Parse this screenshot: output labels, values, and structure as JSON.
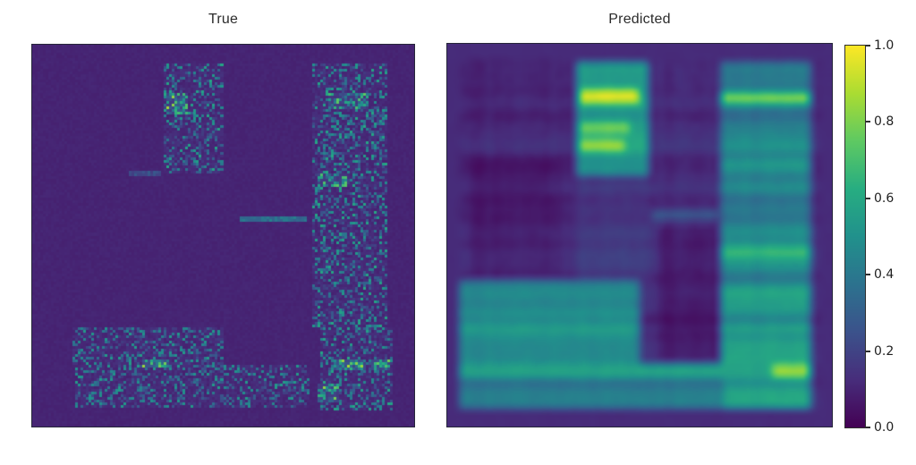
{
  "figure": {
    "background": "#ffffff"
  },
  "titles": {
    "true": "True",
    "predicted": "Predicted"
  },
  "colorbar": {
    "ticks": [
      "1.0",
      "0.8",
      "0.6",
      "0.4",
      "0.2",
      "0.0"
    ],
    "outline_color": "#2f2f2f",
    "label_color": "#1f1f1f"
  },
  "palette": {
    "name": "viridis",
    "stops": [
      "#440154",
      "#472d7b",
      "#3b528b",
      "#2c728e",
      "#21918c",
      "#27ad81",
      "#5ec962",
      "#aadc32",
      "#fde725"
    ]
  },
  "chart_data": [
    {
      "type": "heatmap",
      "title": "True",
      "style": "speckle",
      "colormap": "viridis",
      "value_range": [
        0.0,
        1.0
      ],
      "background_value": 0.1,
      "regions": [
        {
          "x": [
            0.342,
            0.501
          ],
          "y": [
            0.047,
            0.34
          ],
          "density": 0.5,
          "base": 0.1,
          "gain": 0.5
        },
        {
          "x": [
            0.355,
            0.405
          ],
          "y": [
            0.125,
            0.18
          ],
          "density": 0.85,
          "base": 0.18,
          "gain": 0.7
        },
        {
          "x": [
            0.735,
            0.93
          ],
          "y": [
            0.047,
            0.74
          ],
          "density": 0.5,
          "base": 0.1,
          "gain": 0.5
        },
        {
          "x": [
            0.775,
            0.88
          ],
          "y": [
            0.128,
            0.172
          ],
          "density": 0.8,
          "base": 0.16,
          "gain": 0.6
        },
        {
          "x": [
            0.745,
            0.825
          ],
          "y": [
            0.338,
            0.375
          ],
          "density": 0.8,
          "base": 0.16,
          "gain": 0.6
        },
        {
          "x": [
            0.755,
            0.945
          ],
          "y": [
            0.74,
            0.955
          ],
          "density": 0.5,
          "base": 0.1,
          "gain": 0.5
        },
        {
          "x": [
            0.103,
            0.501
          ],
          "y": [
            0.742,
            0.84
          ],
          "density": 0.48,
          "base": 0.1,
          "gain": 0.45
        },
        {
          "x": [
            0.115,
            0.723
          ],
          "y": [
            0.84,
            0.953
          ],
          "density": 0.48,
          "base": 0.1,
          "gain": 0.45
        },
        {
          "x": [
            0.29,
            0.36
          ],
          "y": [
            0.824,
            0.848
          ],
          "density": 0.85,
          "base": 0.22,
          "gain": 0.65
        },
        {
          "x": [
            0.79,
            0.87
          ],
          "y": [
            0.824,
            0.85
          ],
          "density": 0.85,
          "base": 0.22,
          "gain": 0.65
        },
        {
          "x": [
            0.89,
            0.935
          ],
          "y": [
            0.824,
            0.85
          ],
          "density": 0.85,
          "base": 0.22,
          "gain": 0.65
        },
        {
          "x": [
            0.745,
            0.8
          ],
          "y": [
            0.885,
            0.935
          ],
          "density": 0.8,
          "base": 0.18,
          "gain": 0.65
        },
        {
          "x": [
            0.545,
            0.72
          ],
          "y": [
            0.45,
            0.462
          ],
          "density": 0.9,
          "base": 0.32,
          "gain": 0.12
        },
        {
          "x": [
            0.255,
            0.335
          ],
          "y": [
            0.33,
            0.342
          ],
          "density": 0.6,
          "base": 0.2,
          "gain": 0.1
        }
      ]
    },
    {
      "type": "heatmap",
      "title": "Predicted",
      "style": "smooth",
      "colormap": "viridis",
      "value_range": [
        0.0,
        1.0
      ],
      "background_value": 0.12,
      "regions": [
        {
          "x": [
            0.035,
            0.965
          ],
          "y": [
            0.038,
            0.955
          ],
          "base": 0.13,
          "streak": 0.05
        },
        {
          "x": [
            0.04,
            0.335
          ],
          "y": [
            0.04,
            0.62
          ],
          "base": 0.11,
          "streak": 0.05
        },
        {
          "x": [
            0.06,
            0.3
          ],
          "y": [
            0.3,
            0.6
          ],
          "base": 0.075,
          "streak": 0.04
        },
        {
          "x": [
            0.335,
            0.52
          ],
          "y": [
            0.05,
            0.345
          ],
          "base": 0.55,
          "streak": 0.1
        },
        {
          "x": [
            0.34,
            0.5
          ],
          "y": [
            0.115,
            0.16
          ],
          "base": 0.95,
          "streak": 0.04
        },
        {
          "x": [
            0.34,
            0.48
          ],
          "y": [
            0.2,
            0.232
          ],
          "base": 0.78,
          "streak": 0.05
        },
        {
          "x": [
            0.34,
            0.46
          ],
          "y": [
            0.252,
            0.285
          ],
          "base": 0.82,
          "streak": 0.05
        },
        {
          "x": [
            0.335,
            0.52
          ],
          "y": [
            0.345,
            0.62
          ],
          "base": 0.15,
          "streak": 0.05
        },
        {
          "x": [
            0.545,
            0.72
          ],
          "y": [
            0.04,
            0.955
          ],
          "base": 0.12,
          "streak": 0.05
        },
        {
          "x": [
            0.545,
            0.72
          ],
          "y": [
            0.45,
            0.825
          ],
          "base": 0.065,
          "streak": 0.03
        },
        {
          "x": [
            0.53,
            0.7
          ],
          "y": [
            0.44,
            0.452
          ],
          "base": 0.34,
          "streak": 0.02
        },
        {
          "x": [
            0.53,
            0.7
          ],
          "y": [
            0.458,
            0.468
          ],
          "base": 0.3,
          "streak": 0.02
        },
        {
          "x": [
            0.71,
            0.945
          ],
          "y": [
            0.05,
            0.955
          ],
          "base": 0.42,
          "streak": 0.13
        },
        {
          "x": [
            0.71,
            0.945
          ],
          "y": [
            0.125,
            0.16
          ],
          "base": 0.8,
          "streak": 0.06
        },
        {
          "x": [
            0.71,
            0.945
          ],
          "y": [
            0.3,
            0.335
          ],
          "base": 0.55,
          "streak": 0.06
        },
        {
          "x": [
            0.71,
            0.945
          ],
          "y": [
            0.52,
            0.565
          ],
          "base": 0.62,
          "streak": 0.06
        },
        {
          "x": [
            0.71,
            0.945
          ],
          "y": [
            0.63,
            0.955
          ],
          "base": 0.52,
          "streak": 0.12
        },
        {
          "x": [
            0.035,
            0.5
          ],
          "y": [
            0.62,
            0.955
          ],
          "base": 0.42,
          "streak": 0.1
        },
        {
          "x": [
            0.035,
            0.5
          ],
          "y": [
            0.695,
            0.77
          ],
          "base": 0.52,
          "streak": 0.08
        },
        {
          "x": [
            0.035,
            0.945
          ],
          "y": [
            0.833,
            0.875
          ],
          "base": 0.56,
          "streak": 0.06
        },
        {
          "x": [
            0.84,
            0.945
          ],
          "y": [
            0.833,
            0.875
          ],
          "base": 0.82,
          "streak": 0.05
        },
        {
          "x": [
            0.035,
            0.72
          ],
          "y": [
            0.875,
            0.955
          ],
          "base": 0.38,
          "streak": 0.08
        }
      ]
    }
  ]
}
